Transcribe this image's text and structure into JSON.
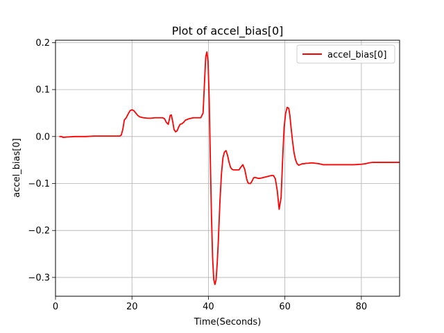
{
  "chart_data": {
    "type": "line",
    "title": "Plot of accel_bias[0]",
    "xlabel": "Time(Seconds)",
    "ylabel": "accel_bias[0]",
    "xlim": [
      0,
      90
    ],
    "ylim": [
      -0.34,
      0.205
    ],
    "xticks": [
      0,
      20,
      40,
      60,
      80
    ],
    "yticks": [
      -0.3,
      -0.2,
      -0.1,
      0.0,
      0.1,
      0.2
    ],
    "xtick_labels": [
      "0",
      "20",
      "40",
      "60",
      "80"
    ],
    "ytick_labels": [
      "−0.3",
      "−0.2",
      "−0.1",
      "0.0",
      "0.1",
      "0.2"
    ],
    "grid": true,
    "legend": {
      "position": "top-right",
      "entries": [
        "accel_bias[0]"
      ]
    },
    "colors": {
      "series": "#ff0000"
    },
    "series": [
      {
        "name": "accel_bias[0]",
        "x": [
          1,
          1.6,
          2,
          3,
          5,
          8,
          10,
          12,
          14,
          16,
          16.8,
          17.2,
          17.6,
          18,
          18.5,
          19,
          19.5,
          20,
          20.5,
          21,
          21.5,
          22,
          23,
          24,
          25,
          26,
          27,
          28,
          28.5,
          29,
          29.5,
          30,
          30.3,
          30.7,
          31,
          31.4,
          31.8,
          32.2,
          32.6,
          33,
          33.5,
          34,
          35,
          36,
          37,
          38,
          38.6,
          39,
          39.3,
          39.6,
          39.9,
          40.2,
          40.5,
          40.8,
          41.1,
          41.4,
          41.7,
          42,
          42.3,
          42.6,
          43,
          43.4,
          43.8,
          44.2,
          44.6,
          45,
          45.4,
          45.8,
          46.2,
          46.6,
          47,
          47.5,
          48,
          48.5,
          49,
          49.5,
          50,
          50.3,
          50.6,
          51,
          51.4,
          51.8,
          52.2,
          52.6,
          53,
          53.5,
          54,
          54.5,
          55,
          55.5,
          56,
          56.5,
          57,
          57.5,
          58,
          58.5,
          59,
          59.4,
          59.8,
          60.2,
          60.6,
          61,
          61.3,
          61.6,
          62,
          62.4,
          62.8,
          63.2,
          63.6,
          64,
          64.5,
          65,
          65.5,
          66,
          67,
          68,
          69,
          70,
          71,
          72,
          74,
          76,
          78,
          80,
          81,
          82,
          83,
          84,
          86,
          88,
          90
        ],
        "y": [
          0.0,
          0.0,
          -0.002,
          -0.001,
          0.0,
          0.0,
          0.001,
          0.001,
          0.001,
          0.001,
          0.001,
          0.003,
          0.015,
          0.035,
          0.04,
          0.048,
          0.055,
          0.057,
          0.055,
          0.05,
          0.045,
          0.042,
          0.04,
          0.039,
          0.039,
          0.04,
          0.04,
          0.04,
          0.038,
          0.03,
          0.026,
          0.045,
          0.046,
          0.03,
          0.015,
          0.01,
          0.012,
          0.02,
          0.026,
          0.027,
          0.03,
          0.035,
          0.038,
          0.04,
          0.04,
          0.04,
          0.05,
          0.12,
          0.17,
          0.18,
          0.16,
          0.08,
          -0.05,
          -0.17,
          -0.26,
          -0.305,
          -0.315,
          -0.305,
          -0.27,
          -0.22,
          -0.14,
          -0.08,
          -0.045,
          -0.033,
          -0.03,
          -0.04,
          -0.055,
          -0.066,
          -0.07,
          -0.071,
          -0.071,
          -0.071,
          -0.071,
          -0.065,
          -0.06,
          -0.07,
          -0.09,
          -0.098,
          -0.1,
          -0.1,
          -0.095,
          -0.088,
          -0.087,
          -0.088,
          -0.089,
          -0.089,
          -0.088,
          -0.087,
          -0.086,
          -0.085,
          -0.084,
          -0.083,
          -0.083,
          -0.09,
          -0.115,
          -0.155,
          -0.13,
          -0.05,
          0.02,
          0.05,
          0.062,
          0.06,
          0.045,
          0.02,
          -0.01,
          -0.035,
          -0.05,
          -0.058,
          -0.061,
          -0.06,
          -0.058,
          -0.058,
          -0.057,
          -0.057,
          -0.056,
          -0.057,
          -0.058,
          -0.06,
          -0.06,
          -0.06,
          -0.06,
          -0.06,
          -0.06,
          -0.059,
          -0.058,
          -0.056,
          -0.055,
          -0.055,
          -0.055,
          -0.055,
          -0.055
        ]
      }
    ]
  }
}
